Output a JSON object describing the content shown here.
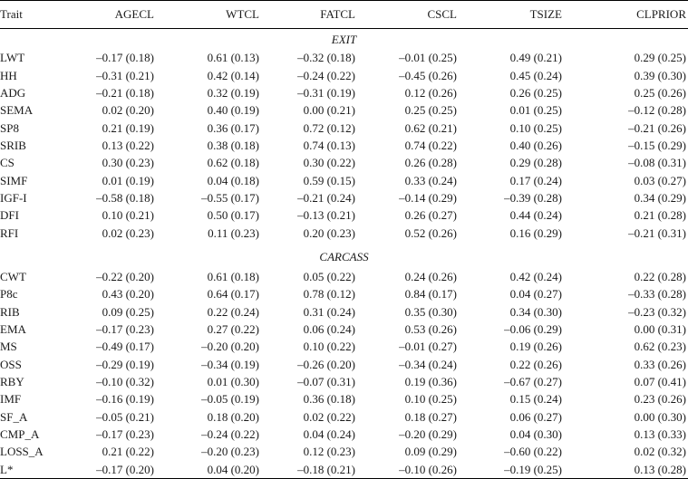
{
  "table": {
    "columns": [
      "Trait",
      "AGECL",
      "WTCL",
      "FATCL",
      "CSCL",
      "TSIZE",
      "CLPRIOR"
    ],
    "sections": [
      {
        "title": "EXIT",
        "rows": [
          {
            "trait": "LWT",
            "values": [
              "–0.17 (0.18)",
              "0.61 (0.13)",
              "–0.32 (0.18)",
              "–0.01 (0.25)",
              "0.49 (0.21)",
              "0.29 (0.25)"
            ]
          },
          {
            "trait": "HH",
            "values": [
              "–0.31 (0.21)",
              "0.42 (0.14)",
              "–0.24 (0.22)",
              "–0.45 (0.26)",
              "0.45 (0.24)",
              "0.39 (0.30)"
            ]
          },
          {
            "trait": "ADG",
            "values": [
              "–0.21 (0.18)",
              "0.32 (0.19)",
              "–0.31 (0.19)",
              "0.12 (0.26)",
              "0.26 (0.25)",
              "0.25 (0.26)"
            ]
          },
          {
            "trait": "SEMA",
            "values": [
              "0.02 (0.20)",
              "0.40 (0.19)",
              "0.00 (0.21)",
              "0.25 (0.25)",
              "0.01 (0.25)",
              "–0.12 (0.28)"
            ]
          },
          {
            "trait": "SP8",
            "values": [
              "0.21 (0.19)",
              "0.36 (0.17)",
              "0.72 (0.12)",
              "0.62 (0.21)",
              "0.10 (0.25)",
              "–0.21 (0.26)"
            ]
          },
          {
            "trait": "SRIB",
            "values": [
              "0.13 (0.22)",
              "0.38 (0.18)",
              "0.74 (0.13)",
              "0.74 (0.22)",
              "0.40 (0.26)",
              "–0.15 (0.29)"
            ]
          },
          {
            "trait": "CS",
            "values": [
              "0.30 (0.23)",
              "0.62 (0.18)",
              "0.30 (0.22)",
              "0.26 (0.28)",
              "0.29 (0.28)",
              "–0.08 (0.31)"
            ]
          },
          {
            "trait": "SIMF",
            "values": [
              "0.01 (0.19)",
              "0.04 (0.18)",
              "0.59 (0.15)",
              "0.33 (0.24)",
              "0.17 (0.24)",
              "0.03 (0.27)"
            ]
          },
          {
            "trait": "IGF-I",
            "values": [
              "–0.58 (0.18)",
              "–0.55 (0.17)",
              "–0.21 (0.24)",
              "–0.14 (0.29)",
              "–0.39 (0.28)",
              "0.34 (0.29)"
            ]
          },
          {
            "trait": "DFI",
            "values": [
              "0.10 (0.21)",
              "0.50 (0.17)",
              "–0.13 (0.21)",
              "0.26 (0.27)",
              "0.44 (0.24)",
              "0.21 (0.28)"
            ]
          },
          {
            "trait": "RFI",
            "values": [
              "0.02 (0.23)",
              "0.11 (0.23)",
              "0.20 (0.23)",
              "0.52 (0.26)",
              "0.16 (0.29)",
              "–0.21 (0.31)"
            ]
          }
        ]
      },
      {
        "title": "CARCASS",
        "rows": [
          {
            "trait": "CWT",
            "values": [
              "–0.22 (0.20)",
              "0.61 (0.18)",
              "0.05 (0.22)",
              "0.24 (0.26)",
              "0.42 (0.24)",
              "0.22 (0.28)"
            ]
          },
          {
            "trait": "P8c",
            "values": [
              "0.43 (0.20)",
              "0.64 (0.17)",
              "0.78 (0.12)",
              "0.84 (0.17)",
              "0.04 (0.27)",
              "–0.33 (0.28)"
            ]
          },
          {
            "trait": "RIB",
            "values": [
              "0.09 (0.25)",
              "0.22 (0.24)",
              "0.31 (0.24)",
              "0.35 (0.30)",
              "0.34 (0.30)",
              "–0.23 (0.32)"
            ]
          },
          {
            "trait": "EMA",
            "values": [
              "–0.17 (0.23)",
              "0.27 (0.22)",
              "0.06 (0.24)",
              "0.53 (0.26)",
              "–0.06 (0.29)",
              "0.00 (0.31)"
            ]
          },
          {
            "trait": "MS",
            "values": [
              "–0.49 (0.17)",
              "–0.20 (0.20)",
              "0.10 (0.22)",
              "–0.01 (0.27)",
              "0.19 (0.26)",
              "0.62 (0.23)"
            ]
          },
          {
            "trait": "OSS",
            "values": [
              "–0.29 (0.19)",
              "–0.34 (0.19)",
              "–0.26 (0.20)",
              "–0.34 (0.24)",
              "0.22 (0.26)",
              "0.33 (0.26)"
            ]
          },
          {
            "trait": "RBY",
            "values": [
              "–0.10 (0.32)",
              "0.01 (0.30)",
              "–0.07 (0.31)",
              "0.19 (0.36)",
              "–0.67 (0.27)",
              "0.07 (0.41)"
            ]
          },
          {
            "trait": "IMF",
            "values": [
              "–0.16 (0.19)",
              "–0.05 (0.19)",
              "0.36 (0.18)",
              "0.10 (0.25)",
              "0.15 (0.24)",
              "0.23 (0.26)"
            ]
          },
          {
            "trait": "SF_A",
            "values": [
              "–0.05 (0.21)",
              "0.18 (0.20)",
              "0.02 (0.22)",
              "0.18 (0.27)",
              "0.06 (0.27)",
              "0.00 (0.30)"
            ]
          },
          {
            "trait": "CMP_A",
            "values": [
              "–0.17 (0.23)",
              "–0.24 (0.22)",
              "0.04 (0.24)",
              "–0.20 (0.29)",
              "0.04 (0.30)",
              "0.13 (0.33)"
            ]
          },
          {
            "trait": "LOSS_A",
            "values": [
              "0.21 (0.22)",
              "–0.20 (0.23)",
              "0.12 (0.23)",
              "0.09 (0.29)",
              "–0.60 (0.22)",
              "0.02 (0.32)"
            ]
          },
          {
            "trait": "L*",
            "values": [
              "–0.17 (0.20)",
              "0.04 (0.20)",
              "–0.18 (0.21)",
              "–0.10 (0.26)",
              "–0.19 (0.25)",
              "0.13 (0.28)"
            ]
          }
        ]
      }
    ]
  }
}
